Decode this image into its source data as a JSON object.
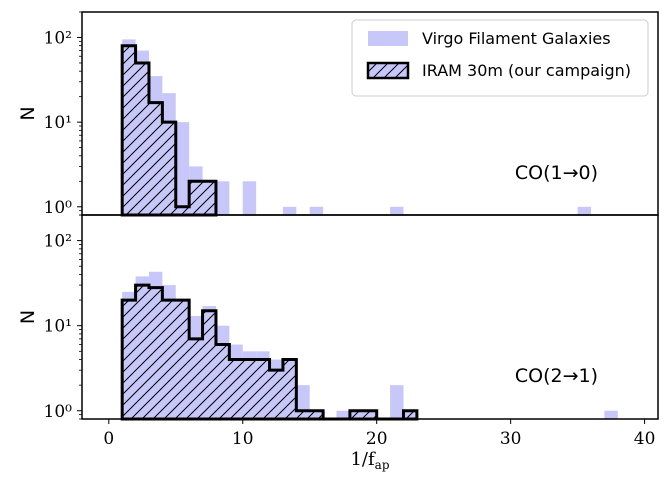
{
  "chart_data": [
    {
      "type": "bar",
      "panel": "top",
      "annotation": "CO(1→0)",
      "ylabel": "N",
      "yscale": "log",
      "ylim": [
        0.8,
        200
      ],
      "yticks": [
        {
          "v": 1,
          "label": "10⁰"
        },
        {
          "v": 10,
          "label": "10¹"
        },
        {
          "v": 100,
          "label": "10²"
        }
      ],
      "legend": {
        "placement": "top-right",
        "entries": [
          "Virgo Filament Galaxies",
          "IRAM 30m (our campaign)"
        ]
      },
      "series": [
        {
          "name": "Virgo Filament Galaxies",
          "style": "filled",
          "color": "#c7c7fa",
          "bin_edges": [
            1,
            2,
            3,
            4,
            5,
            6,
            7,
            8,
            9,
            10,
            11,
            12,
            13,
            14,
            15,
            16,
            17,
            18,
            19,
            20,
            21,
            22,
            23,
            24,
            25,
            26,
            27,
            28,
            29,
            30,
            31,
            32,
            33,
            34,
            35,
            36,
            37,
            38
          ],
          "counts": [
            95,
            70,
            35,
            22,
            10,
            3,
            2,
            2,
            0,
            2,
            0,
            0,
            1,
            0,
            1,
            0,
            0,
            0,
            0,
            0,
            1,
            0,
            0,
            0,
            0,
            0,
            0,
            0,
            0,
            0,
            0,
            0,
            0,
            0,
            1,
            0,
            0
          ]
        },
        {
          "name": "IRAM 30m (our campaign)",
          "style": "hatched",
          "color": "#000000",
          "bin_edges": [
            1,
            2,
            3,
            4,
            5,
            6,
            7,
            8
          ],
          "counts": [
            80,
            50,
            17,
            10,
            1,
            2,
            2
          ]
        }
      ]
    },
    {
      "type": "bar",
      "panel": "bottom",
      "annotation": "CO(2→1)",
      "ylabel": "N",
      "yscale": "log",
      "ylim": [
        0.8,
        200
      ],
      "yticks": [
        {
          "v": 1,
          "label": "10⁰"
        },
        {
          "v": 10,
          "label": "10¹"
        },
        {
          "v": 100,
          "label": "10²"
        }
      ],
      "xlabel": "1/f_ap",
      "xlabel_display": {
        "main": "1/f",
        "sub": "ap"
      },
      "xlim": [
        -2,
        41
      ],
      "xticks": [
        0,
        10,
        20,
        30,
        40
      ],
      "series": [
        {
          "name": "Virgo Filament Galaxies",
          "style": "filled",
          "color": "#c7c7fa",
          "bin_edges": [
            1,
            2,
            3,
            4,
            5,
            6,
            7,
            8,
            9,
            10,
            11,
            12,
            13,
            14,
            15,
            16,
            17,
            18,
            19,
            20,
            21,
            22,
            23,
            24,
            25,
            26,
            27,
            28,
            29,
            30,
            31,
            32,
            33,
            34,
            35,
            36,
            37,
            38
          ],
          "counts": [
            25,
            38,
            43,
            30,
            15,
            13,
            17,
            10,
            6,
            5,
            5,
            4,
            3,
            2,
            1,
            0,
            1,
            0,
            1,
            0,
            2,
            1,
            0,
            0,
            0,
            0,
            0,
            0,
            0,
            0,
            0,
            0,
            0,
            0,
            0,
            0,
            1
          ]
        },
        {
          "name": "IRAM 30m (our campaign)",
          "style": "hatched",
          "color": "#000000",
          "bin_edges": [
            1,
            2,
            3,
            4,
            5,
            6,
            7,
            8,
            9,
            10,
            11,
            12,
            13,
            14,
            15,
            16,
            17,
            18,
            19,
            20,
            21,
            22,
            23
          ],
          "counts": [
            20,
            30,
            28,
            20,
            20,
            7,
            15,
            6,
            4,
            4,
            4,
            3,
            4,
            1,
            1,
            0,
            0,
            1,
            1,
            0,
            0,
            1
          ]
        }
      ]
    }
  ]
}
